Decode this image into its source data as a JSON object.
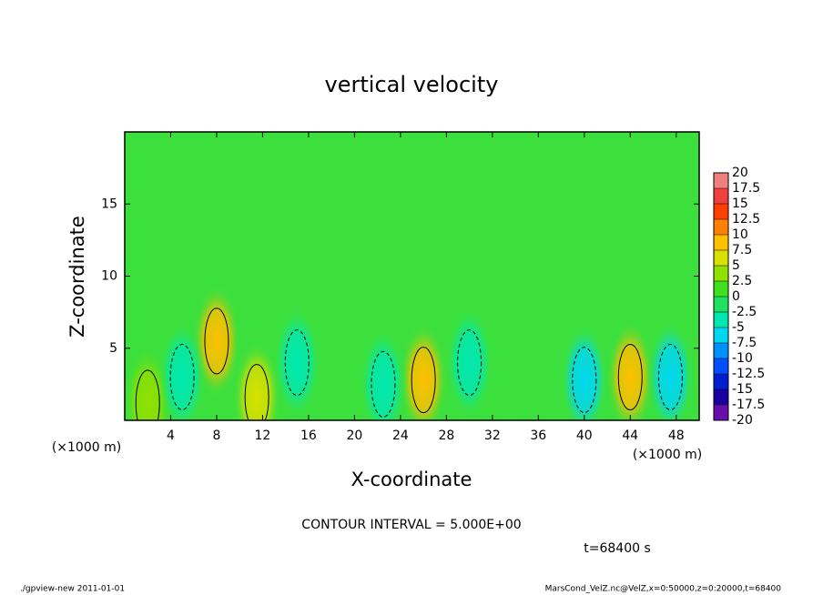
{
  "chart_data": {
    "type": "contour",
    "title": "vertical velocity",
    "x_label": "X-coordinate",
    "y_label": "Z-coordinate",
    "unit_label": "(×1000 m)",
    "xlim": [
      0,
      50
    ],
    "xticks": [
      4,
      8,
      12,
      16,
      20,
      24,
      28,
      32,
      36,
      40,
      44,
      48
    ],
    "ylim": [
      0,
      20
    ],
    "yticks": [
      5,
      10,
      15
    ],
    "background_color": "#3ce03c",
    "levels": [
      -20,
      -17.5,
      -15,
      -12.5,
      -10,
      -7.5,
      -5,
      -2.5,
      0,
      2.5,
      5,
      7.5,
      10,
      12.5,
      15,
      17.5,
      20
    ],
    "colors": [
      "#6a0dad",
      "#1a00a0",
      "#0020d0",
      "#0050ff",
      "#0090ff",
      "#00d8f0",
      "#00e8b0",
      "#20e060",
      "#40e020",
      "#90e000",
      "#d8e000",
      "#ffc000",
      "#ff8000",
      "#ff4000",
      "#f04040",
      "#f08080"
    ],
    "cells": [
      {
        "x": 8,
        "z": 5.5,
        "value": 8
      },
      {
        "x": 26,
        "z": 2.8,
        "value": 8
      },
      {
        "x": 44,
        "z": 3,
        "value": 9
      },
      {
        "x": 11.5,
        "z": 1.6,
        "value": 5
      },
      {
        "x": 2,
        "z": 1.2,
        "value": 4
      },
      {
        "x": 5,
        "z": 3,
        "value": -5
      },
      {
        "x": 22.5,
        "z": 2.5,
        "value": -5
      },
      {
        "x": 40,
        "z": 2.8,
        "value": -7
      },
      {
        "x": 47.5,
        "z": 3,
        "value": -6
      },
      {
        "x": 15,
        "z": 4,
        "value": -3
      },
      {
        "x": 30,
        "z": 4,
        "value": -3
      }
    ],
    "contour_note": "CONTOUR INTERVAL = 5.000E+00",
    "time_label": "t=68400 s",
    "footer_left": "./gpview-new   2011-01-01",
    "footer_right": "MarsCond_VelZ.nc@VelZ,x=0:50000,z=0:20000,t=68400"
  }
}
